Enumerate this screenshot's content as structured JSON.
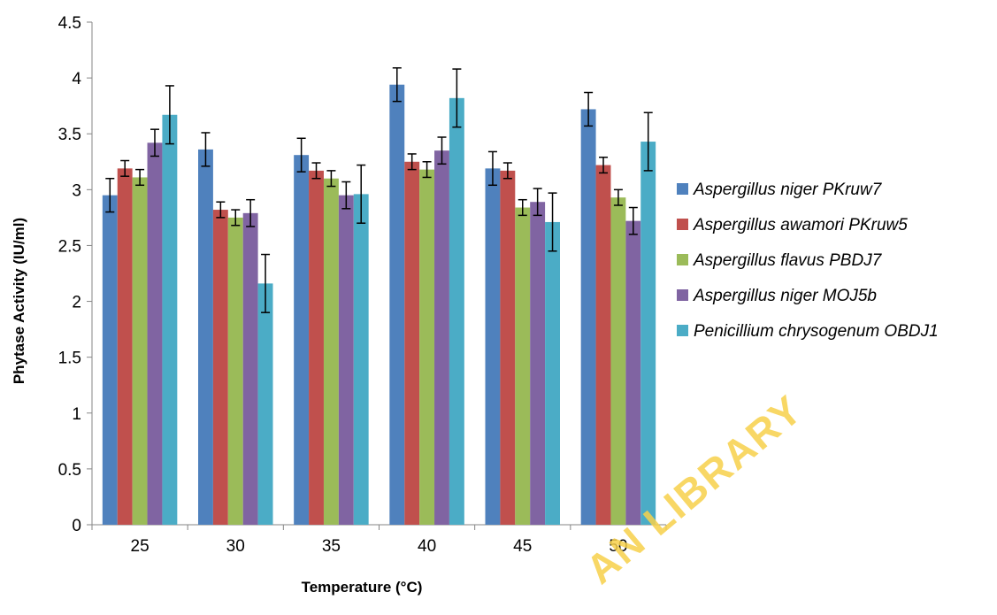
{
  "chart_data": {
    "type": "bar",
    "title": "",
    "xlabel": "Temperature (°C)",
    "ylabel": "Phytase Activity (IU/ml)",
    "ylim": [
      0,
      4.5
    ],
    "yticks": [
      "0",
      "0.5",
      "1",
      "1.5",
      "2",
      "2.5",
      "3",
      "3.5",
      "4",
      "4.5"
    ],
    "categories": [
      "25",
      "30",
      "35",
      "40",
      "45",
      "50"
    ],
    "grid": false,
    "legend_position": "right",
    "error_bars": true,
    "series": [
      {
        "name": "Aspergillus niger PKruw7",
        "color": "#4f81bd",
        "values": [
          2.95,
          3.36,
          3.31,
          3.94,
          3.19,
          3.72
        ],
        "errors": [
          0.15,
          0.15,
          0.15,
          0.15,
          0.15,
          0.15
        ]
      },
      {
        "name": "Aspergillus awamori PKruw5",
        "color": "#c0504d",
        "values": [
          3.19,
          2.82,
          3.17,
          3.25,
          3.17,
          3.22
        ],
        "errors": [
          0.07,
          0.07,
          0.07,
          0.07,
          0.07,
          0.07
        ]
      },
      {
        "name": "Aspergillus flavus PBDJ7",
        "color": "#9bbb59",
        "values": [
          3.11,
          2.75,
          3.1,
          3.18,
          2.84,
          2.93
        ],
        "errors": [
          0.07,
          0.07,
          0.07,
          0.07,
          0.07,
          0.07
        ]
      },
      {
        "name": "Aspergillus niger MOJ5b",
        "color": "#8064a2",
        "values": [
          3.42,
          2.79,
          2.95,
          3.35,
          2.89,
          2.72
        ],
        "errors": [
          0.12,
          0.12,
          0.12,
          0.12,
          0.12,
          0.12
        ]
      },
      {
        "name": "Penicillium chrysogenum OBDJ1",
        "color": "#4bacc6",
        "values": [
          3.67,
          2.16,
          2.96,
          3.82,
          2.71,
          3.43
        ],
        "errors": [
          0.26,
          0.26,
          0.26,
          0.26,
          0.26,
          0.26
        ]
      }
    ]
  },
  "watermark": {
    "text": "AN LIBRARY",
    "color": "#f7d14b"
  }
}
